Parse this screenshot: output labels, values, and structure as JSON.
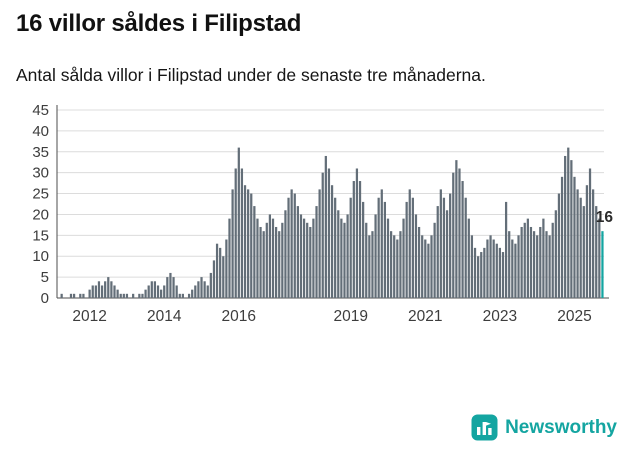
{
  "header": {
    "title": "16 villor såldes i Filipstad",
    "subtitle": "Antal sålda villor i Filipstad under de senaste tre månaderna."
  },
  "chart_data": {
    "type": "bar",
    "title": "16 villor såldes i Filipstad",
    "subtitle": "Antal sålda villor i Filipstad under de senaste tre månaderna.",
    "ylabel": "",
    "xlabel": "",
    "ylim": [
      0,
      45
    ],
    "y_ticks": [
      0,
      5,
      10,
      15,
      20,
      25,
      30,
      35,
      40,
      45
    ],
    "x_tick_years": [
      2012,
      2014,
      2016,
      2019,
      2021,
      2023,
      2025
    ],
    "x_start": "2011-03",
    "x_end": "2025-10",
    "grid": true,
    "legend": "none",
    "values": [
      0,
      1,
      0,
      0,
      1,
      1,
      0,
      1,
      1,
      0,
      2,
      3,
      3,
      4,
      3,
      4,
      5,
      4,
      3,
      2,
      1,
      1,
      1,
      0,
      1,
      0,
      1,
      1,
      2,
      3,
      4,
      4,
      3,
      2,
      3,
      5,
      6,
      5,
      3,
      1,
      1,
      0,
      1,
      2,
      3,
      4,
      5,
      4,
      3,
      6,
      9,
      13,
      12,
      10,
      14,
      19,
      26,
      31,
      36,
      31,
      27,
      26,
      25,
      22,
      19,
      17,
      16,
      18,
      20,
      19,
      17,
      16,
      18,
      21,
      24,
      26,
      25,
      22,
      20,
      19,
      18,
      17,
      19,
      22,
      26,
      30,
      34,
      31,
      27,
      24,
      21,
      19,
      18,
      20,
      24,
      28,
      31,
      28,
      23,
      18,
      15,
      16,
      20,
      24,
      26,
      23,
      19,
      16,
      15,
      14,
      16,
      19,
      23,
      26,
      24,
      20,
      17,
      15,
      14,
      13,
      15,
      18,
      22,
      26,
      24,
      21,
      25,
      30,
      33,
      31,
      28,
      24,
      19,
      15,
      12,
      10,
      11,
      12,
      14,
      15,
      14,
      13,
      12,
      11,
      23,
      16,
      14,
      13,
      15,
      17,
      18,
      19,
      17,
      16,
      15,
      17,
      19,
      16,
      15,
      18,
      21,
      25,
      29,
      34,
      36,
      33,
      29,
      26,
      24,
      22,
      27,
      31,
      26,
      22,
      19,
      16
    ],
    "highlight_last": true,
    "last_value_label": "16",
    "bar_color": "#636e78",
    "highlight_color": "#14a5a1",
    "grid_color": "#dcdcdc",
    "axis_color": "#4d4d4d",
    "axis_text_color": "#3d3d3d",
    "annotation_color": "#2b2b2b"
  },
  "footer": {
    "brand": "Newsworthy",
    "brand_color": "#14a5a1"
  }
}
